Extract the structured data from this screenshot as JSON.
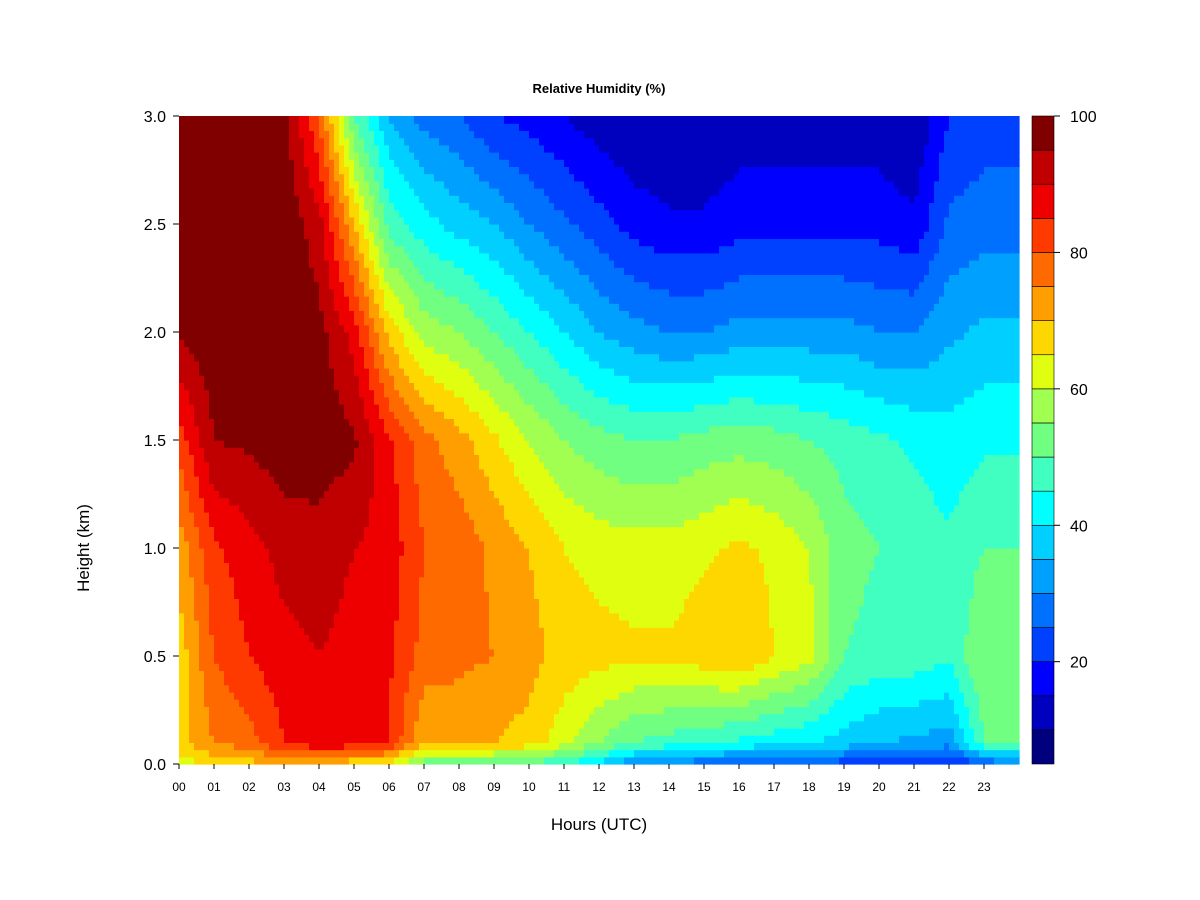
{
  "chart_data": {
    "type": "heatmap",
    "title": "Relative Humidity (%)",
    "xlabel": "Hours (UTC)",
    "ylabel": "Height (km)",
    "x_tick_labels": [
      "00",
      "01",
      "02",
      "03",
      "04",
      "05",
      "06",
      "07",
      "08",
      "09",
      "10",
      "11",
      "12",
      "13",
      "14",
      "15",
      "16",
      "17",
      "18",
      "19",
      "20",
      "21",
      "22",
      "23"
    ],
    "y_tick_labels": [
      "0.0",
      "0.5",
      "1.0",
      "1.5",
      "2.0",
      "2.5",
      "3.0"
    ],
    "xlim": [
      0,
      24
    ],
    "ylim": [
      0,
      3
    ],
    "colorbar": {
      "min": 5,
      "max": 100,
      "step": 5,
      "tick_values": [
        20,
        40,
        60,
        80,
        100
      ],
      "tick_labels": [
        "20",
        "40",
        "60",
        "80",
        "100"
      ],
      "colors": [
        "#00007F",
        "#0000BF",
        "#0000FF",
        "#0040FF",
        "#0070FF",
        "#00A0FF",
        "#00CFFF",
        "#00FFFF",
        "#40FFC0",
        "#70FF80",
        "#A0FF50",
        "#E0FF10",
        "#FFD700",
        "#FF9E00",
        "#FF6A00",
        "#FF3A00",
        "#EE0000",
        "#C00000",
        "#800000"
      ]
    },
    "hour_profiles": [
      {
        "hour": 0.0,
        "heights": [
          0,
          0.1,
          0.5,
          1.0,
          1.5,
          2.0,
          2.5,
          3.0
        ],
        "rh": [
          62,
          68,
          67,
          72,
          82,
          96,
          99,
          99
        ]
      },
      {
        "hour": 1.0,
        "heights": [
          0,
          0.1,
          0.5,
          1.0,
          1.5,
          2.0,
          2.5,
          3.0
        ],
        "rh": [
          66,
          75,
          80,
          84,
          95,
          99,
          99,
          99
        ]
      },
      {
        "hour": 2.0,
        "heights": [
          0,
          0.1,
          0.5,
          1.0,
          1.5,
          2.0,
          2.5,
          3.0
        ],
        "rh": [
          68,
          78,
          85,
          88,
          96,
          99,
          99,
          99
        ]
      },
      {
        "hour": 3.0,
        "heights": [
          0,
          0.1,
          0.5,
          1.0,
          1.5,
          2.0,
          2.5,
          3.0
        ],
        "rh": [
          70,
          85,
          88,
          92,
          98,
          99,
          99,
          97
        ]
      },
      {
        "hour": 4.0,
        "heights": [
          0,
          0.1,
          0.5,
          1.0,
          1.5,
          2.0,
          2.5,
          3.0
        ],
        "rh": [
          68,
          90,
          90,
          93,
          98,
          97,
          92,
          80
        ]
      },
      {
        "hour": 5.0,
        "heights": [
          0,
          0.1,
          0.5,
          1.0,
          1.5,
          2.0,
          2.5,
          3.0
        ],
        "rh": [
          66,
          88,
          88,
          90,
          96,
          88,
          70,
          50
        ]
      },
      {
        "hour": 6.0,
        "heights": [
          0,
          0.1,
          0.5,
          1.0,
          1.5,
          2.0,
          2.5,
          3.0
        ],
        "rh": [
          64,
          85,
          86,
          88,
          86,
          68,
          48,
          35
        ]
      },
      {
        "hour": 7.0,
        "heights": [
          0,
          0.1,
          0.5,
          1.0,
          1.5,
          2.0,
          2.5,
          3.0
        ],
        "rh": [
          52,
          70,
          78,
          80,
          77,
          58,
          42,
          28
        ]
      },
      {
        "hour": 8.0,
        "heights": [
          0,
          0.1,
          0.5,
          1.0,
          1.5,
          2.0,
          2.5,
          3.0
        ],
        "rh": [
          50,
          72,
          76,
          78,
          72,
          55,
          38,
          25
        ]
      },
      {
        "hour": 9.0,
        "heights": [
          0,
          0.1,
          0.5,
          1.0,
          1.5,
          2.0,
          2.5,
          3.0
        ],
        "rh": [
          50,
          70,
          75,
          74,
          66,
          50,
          35,
          20
        ]
      },
      {
        "hour": 10.0,
        "heights": [
          0,
          0.1,
          0.5,
          1.0,
          1.5,
          2.0,
          2.5,
          3.0
        ],
        "rh": [
          48,
          68,
          72,
          70,
          60,
          45,
          30,
          18
        ]
      },
      {
        "hour": 11.0,
        "heights": [
          0,
          0.1,
          0.5,
          1.0,
          1.5,
          2.0,
          2.5,
          3.0
        ],
        "rh": [
          45,
          62,
          68,
          65,
          55,
          40,
          26,
          15
        ]
      },
      {
        "hour": 12.0,
        "heights": [
          0,
          0.1,
          0.5,
          1.0,
          1.5,
          2.0,
          2.5,
          3.0
        ],
        "rh": [
          38,
          55,
          67,
          63,
          52,
          35,
          22,
          12
        ]
      },
      {
        "hour": 13.0,
        "heights": [
          0,
          0.1,
          0.5,
          1.0,
          1.5,
          2.0,
          2.5,
          3.0
        ],
        "rh": [
          30,
          50,
          66,
          62,
          50,
          32,
          18,
          10
        ]
      },
      {
        "hour": 14.0,
        "heights": [
          0,
          0.1,
          0.5,
          1.0,
          1.5,
          2.0,
          2.5,
          3.0
        ],
        "rh": [
          28,
          48,
          66,
          62,
          50,
          30,
          16,
          10
        ]
      },
      {
        "hour": 15.0,
        "heights": [
          0,
          0.1,
          0.5,
          1.0,
          1.5,
          2.0,
          2.5,
          3.0
        ],
        "rh": [
          26,
          46,
          68,
          64,
          52,
          30,
          16,
          10
        ]
      },
      {
        "hour": 16.0,
        "heights": [
          0,
          0.1,
          0.5,
          1.0,
          1.5,
          2.0,
          2.5,
          3.0
        ],
        "rh": [
          24,
          44,
          70,
          66,
          53,
          32,
          18,
          12
        ]
      },
      {
        "hour": 17.0,
        "heights": [
          0,
          0.1,
          0.5,
          1.0,
          1.5,
          2.0,
          2.5,
          3.0
        ],
        "rh": [
          24,
          42,
          65,
          64,
          52,
          32,
          18,
          12
        ]
      },
      {
        "hour": 18.0,
        "heights": [
          0,
          0.1,
          0.5,
          1.0,
          1.5,
          2.0,
          2.5,
          3.0
        ],
        "rh": [
          24,
          40,
          62,
          60,
          50,
          32,
          18,
          12
        ]
      },
      {
        "hour": 19.0,
        "heights": [
          0,
          0.1,
          0.5,
          1.0,
          1.5,
          2.0,
          2.5,
          3.0
        ],
        "rh": [
          22,
          38,
          50,
          52,
          48,
          32,
          18,
          12
        ]
      },
      {
        "hour": 20.0,
        "heights": [
          0,
          0.1,
          0.5,
          1.0,
          1.5,
          2.0,
          2.5,
          3.0
        ],
        "rh": [
          20,
          35,
          48,
          50,
          46,
          30,
          18,
          12
        ]
      },
      {
        "hour": 21.0,
        "heights": [
          0,
          0.1,
          0.5,
          1.0,
          1.5,
          2.0,
          2.5,
          3.0
        ],
        "rh": [
          18,
          34,
          48,
          48,
          44,
          30,
          16,
          10
        ]
      },
      {
        "hour": 22.0,
        "heights": [
          0,
          0.1,
          0.5,
          1.0,
          1.5,
          2.0,
          2.5,
          3.0
        ],
        "rh": [
          18,
          32,
          46,
          46,
          42,
          34,
          26,
          20
        ]
      },
      {
        "hour": 23.0,
        "heights": [
          0,
          0.1,
          0.5,
          1.0,
          1.5,
          2.0,
          2.5,
          3.0
        ],
        "rh": [
          25,
          50,
          55,
          50,
          44,
          36,
          28,
          22
        ]
      },
      {
        "hour": 24.0,
        "heights": [
          0,
          0.1,
          0.5,
          1.0,
          1.5,
          2.0,
          2.5,
          3.0
        ],
        "rh": [
          28,
          52,
          55,
          50,
          44,
          36,
          28,
          22
        ]
      }
    ]
  }
}
